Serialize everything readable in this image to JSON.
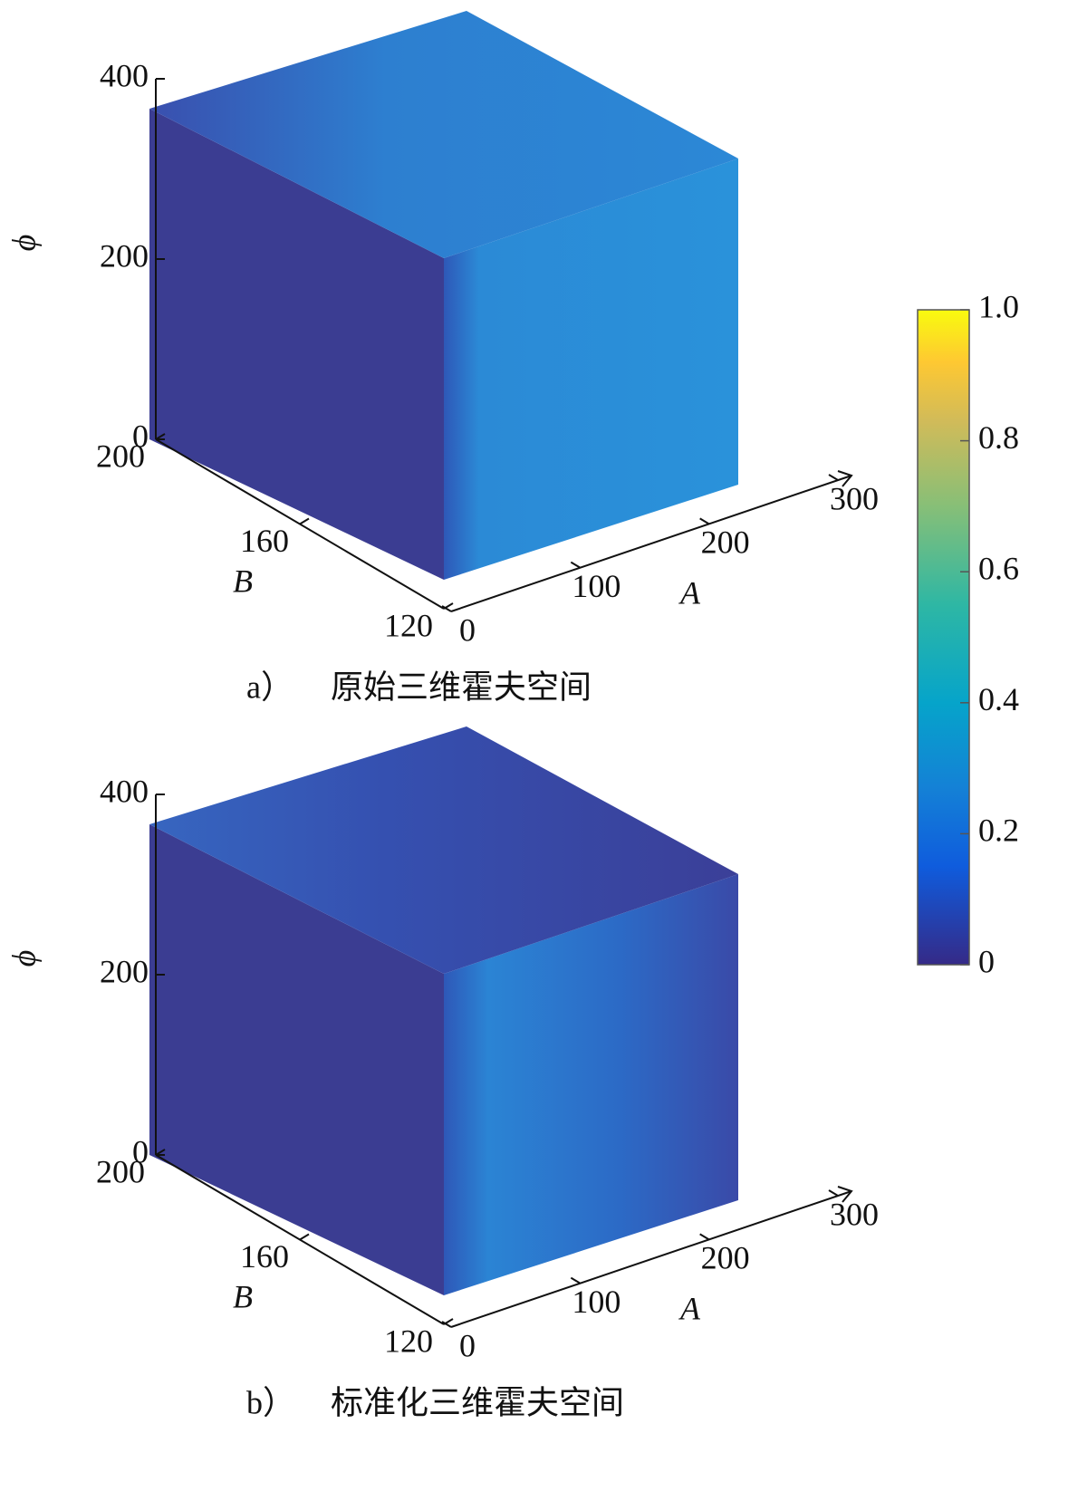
{
  "chart_data": [
    {
      "type": "volume3d",
      "caption": "a）",
      "title": "原始三维霍夫空间",
      "zlabel": "ϕ",
      "zlim": [
        0,
        400
      ],
      "zticks": [
        0,
        200,
        400
      ],
      "ylabel": "B",
      "ylim": [
        200,
        120
      ],
      "yticks": [
        120,
        160,
        200
      ],
      "xlabel": "A",
      "xlim": [
        0,
        300
      ],
      "xticks": [
        0,
        100,
        200,
        300
      ]
    },
    {
      "type": "volume3d",
      "caption": "b）",
      "title": "标准化三维霍夫空间",
      "zlabel": "ϕ",
      "zlim": [
        0,
        400
      ],
      "zticks": [
        0,
        200,
        400
      ],
      "ylabel": "B",
      "ylim": [
        200,
        120
      ],
      "yticks": [
        120,
        160,
        200
      ],
      "xlabel": "A",
      "xlim": [
        0,
        300
      ],
      "xticks": [
        0,
        100,
        200,
        300
      ]
    }
  ],
  "colorbar": {
    "ylim": [
      0,
      1
    ],
    "yticks": [
      0,
      0.2,
      0.4,
      0.6,
      0.8,
      {
        "value": 1,
        "label": "1.0"
      }
    ]
  }
}
